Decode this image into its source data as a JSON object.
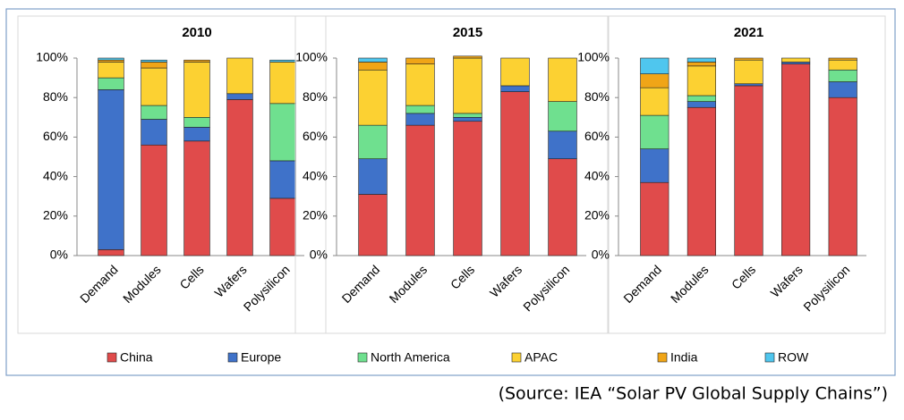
{
  "chart_data": {
    "type": "bar",
    "stacked": true,
    "series": [
      {
        "name": "China",
        "color": "#e04b4b"
      },
      {
        "name": "Europe",
        "color": "#3f72c9"
      },
      {
        "name": "North America",
        "color": "#6fe08f"
      },
      {
        "name": "APAC",
        "color": "#fcd132"
      },
      {
        "name": "India",
        "color": "#f0a517"
      },
      {
        "name": "ROW",
        "color": "#4fc6ee"
      }
    ],
    "ylim": [
      0,
      100
    ],
    "yticks": [
      {
        "value": 0,
        "label": "0%"
      },
      {
        "value": 20,
        "label": "20%"
      },
      {
        "value": 40,
        "label": "40%"
      },
      {
        "value": 60,
        "label": "60%"
      },
      {
        "value": 80,
        "label": "80%"
      },
      {
        "value": 100,
        "label": "100%"
      }
    ],
    "panels": [
      {
        "title": "2010",
        "categories": [
          "Demand",
          "Modules",
          "Cells",
          "Wafers",
          "Polysilicon"
        ],
        "series": [
          {
            "values": [
              3,
              56,
              58,
              79,
              29
            ]
          },
          {
            "values": [
              81,
              13,
              7,
              3,
              19
            ]
          },
          {
            "values": [
              6,
              7,
              5,
              0,
              29
            ]
          },
          {
            "values": [
              8,
              19,
              28,
              18,
              21
            ]
          },
          {
            "values": [
              1,
              3,
              1,
              0,
              0
            ]
          },
          {
            "values": [
              1,
              1,
              0,
              0,
              1
            ]
          }
        ]
      },
      {
        "title": "2015",
        "categories": [
          "Demand",
          "Modules",
          "Cells",
          "Wafers",
          "Polysilicon"
        ],
        "series": [
          {
            "values": [
              31,
              66,
              68,
              83,
              49
            ]
          },
          {
            "values": [
              18,
              6,
              2,
              3,
              14
            ]
          },
          {
            "values": [
              17,
              4,
              2,
              0,
              15
            ]
          },
          {
            "values": [
              28,
              21,
              28,
              14,
              22
            ]
          },
          {
            "values": [
              4,
              3,
              1,
              0,
              0
            ]
          },
          {
            "values": [
              2,
              0,
              0,
              0,
              0
            ]
          }
        ]
      },
      {
        "title": "2021",
        "categories": [
          "Demand",
          "Modules",
          "Cells",
          "Wafers",
          "Polysilicon"
        ],
        "series": [
          {
            "values": [
              37,
              75,
              86,
              97,
              80
            ]
          },
          {
            "values": [
              17,
              3,
              1,
              1,
              8
            ]
          },
          {
            "values": [
              17,
              3,
              0,
              0,
              6
            ]
          },
          {
            "values": [
              14,
              15,
              12,
              2,
              5
            ]
          },
          {
            "values": [
              7,
              2,
              1,
              0,
              1
            ]
          },
          {
            "values": [
              8,
              2,
              0,
              0,
              0
            ]
          }
        ]
      }
    ],
    "source": "(Source: IEA “Solar PV Global Supply Chains”)"
  }
}
